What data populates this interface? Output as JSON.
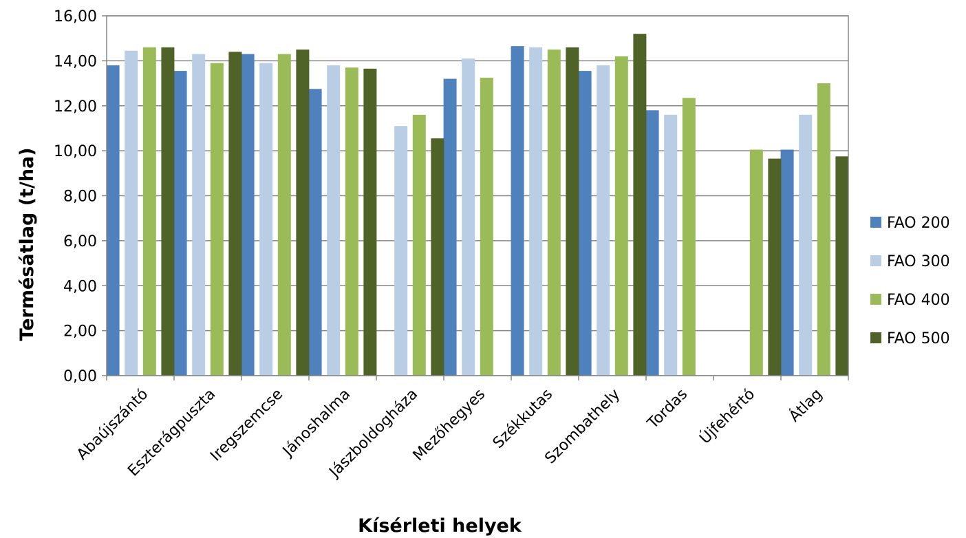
{
  "chart_data": {
    "type": "bar",
    "title": "",
    "xlabel": "Kísérleti helyek",
    "ylabel": "Termésátlag (t/ha)",
    "ylim": [
      0,
      16
    ],
    "yticks": [
      "0,00",
      "2,00",
      "4,00",
      "6,00",
      "8,00",
      "10,00",
      "12,00",
      "14,00",
      "16,00"
    ],
    "grid": true,
    "legend_position": "right",
    "categories": [
      "Abaújszántó",
      "Eszterágpuszta",
      "Iregszemcse",
      "Jánoshalma",
      "Jászboldogháza",
      "Mezőhegyes",
      "Székkutas",
      "Szombathely",
      "Tordas",
      "Újfehértó",
      "Átlag"
    ],
    "series": [
      {
        "name": "FAO 200",
        "color": "#4F81BD",
        "values": [
          13.8,
          13.55,
          14.3,
          12.75,
          null,
          13.2,
          14.65,
          13.55,
          11.8,
          null,
          10.05
        ]
      },
      {
        "name": "FAO 300",
        "color": "#B9CDE5",
        "values": [
          14.45,
          14.3,
          13.9,
          13.8,
          11.1,
          14.1,
          14.6,
          13.8,
          11.6,
          null,
          11.6
        ]
      },
      {
        "name": "FAO 400",
        "color": "#9BBB59",
        "values": [
          14.6,
          13.9,
          14.3,
          13.7,
          11.6,
          13.25,
          14.5,
          14.2,
          12.35,
          10.05,
          13.0
        ]
      },
      {
        "name": "FAO 500",
        "color": "#4F6228",
        "values": [
          14.6,
          14.4,
          14.5,
          13.65,
          10.55,
          null,
          14.6,
          15.2,
          null,
          9.65,
          9.75
        ]
      }
    ]
  }
}
